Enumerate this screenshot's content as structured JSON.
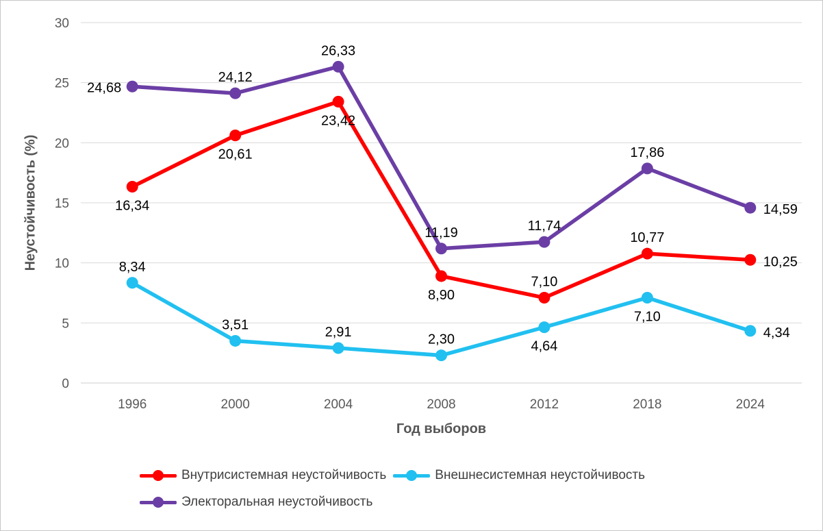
{
  "chart_data": {
    "type": "line",
    "title": "",
    "x": [
      "1996",
      "2000",
      "2004",
      "2008",
      "2012",
      "2018",
      "2024"
    ],
    "xlabel": "Год выборов",
    "ylabel": "Неустойчивость (%)",
    "ylim": [
      0,
      30
    ],
    "yticks": [
      0,
      5,
      10,
      15,
      20,
      25,
      30
    ],
    "grid": true,
    "legend_position": "bottom",
    "legend_rows": [
      [
        0,
        1
      ],
      [
        2
      ]
    ],
    "series": [
      {
        "name": "Внутрисистемная неустойчивость",
        "color": "#FF0000",
        "values": [
          16.34,
          20.61,
          23.42,
          8.9,
          7.1,
          10.77,
          10.25
        ],
        "labels": [
          "16,34",
          "20,61",
          "23,42",
          "8,90",
          "7,10",
          "10,77",
          "10,25"
        ],
        "label_pos": [
          "below",
          "below",
          "below",
          "below",
          "above",
          "above",
          "right"
        ]
      },
      {
        "name": "Внешнесистемная неустойчивость",
        "color": "#21C0F0",
        "values": [
          8.34,
          3.51,
          2.91,
          2.3,
          4.64,
          7.1,
          4.34
        ],
        "labels": [
          "8,34",
          "3,51",
          "2,91",
          "2,30",
          "4,64",
          "7,10",
          "4,34"
        ],
        "label_pos": [
          "above",
          "above",
          "above",
          "above",
          "below",
          "below",
          "right"
        ]
      },
      {
        "name": "Электоральная неустойчивость",
        "color": "#6B3EA5",
        "values": [
          24.68,
          24.12,
          26.33,
          11.19,
          11.74,
          17.86,
          14.59
        ],
        "labels": [
          "24,68",
          "24,12",
          "26,33",
          "11,19",
          "11,74",
          "17,86",
          "14,59"
        ],
        "label_pos": [
          "left",
          "above",
          "above",
          "above",
          "above",
          "above",
          "right"
        ]
      }
    ]
  },
  "colors": {
    "gridline": "#D9D9D9",
    "axis_line": "#CDCDCD",
    "tick_text": "#595959",
    "data_label_text": "#000000",
    "axis_title_text": "#565656",
    "legend_text": "#404040",
    "background": "#FFFFFF",
    "border": "#C6C6C6"
  }
}
